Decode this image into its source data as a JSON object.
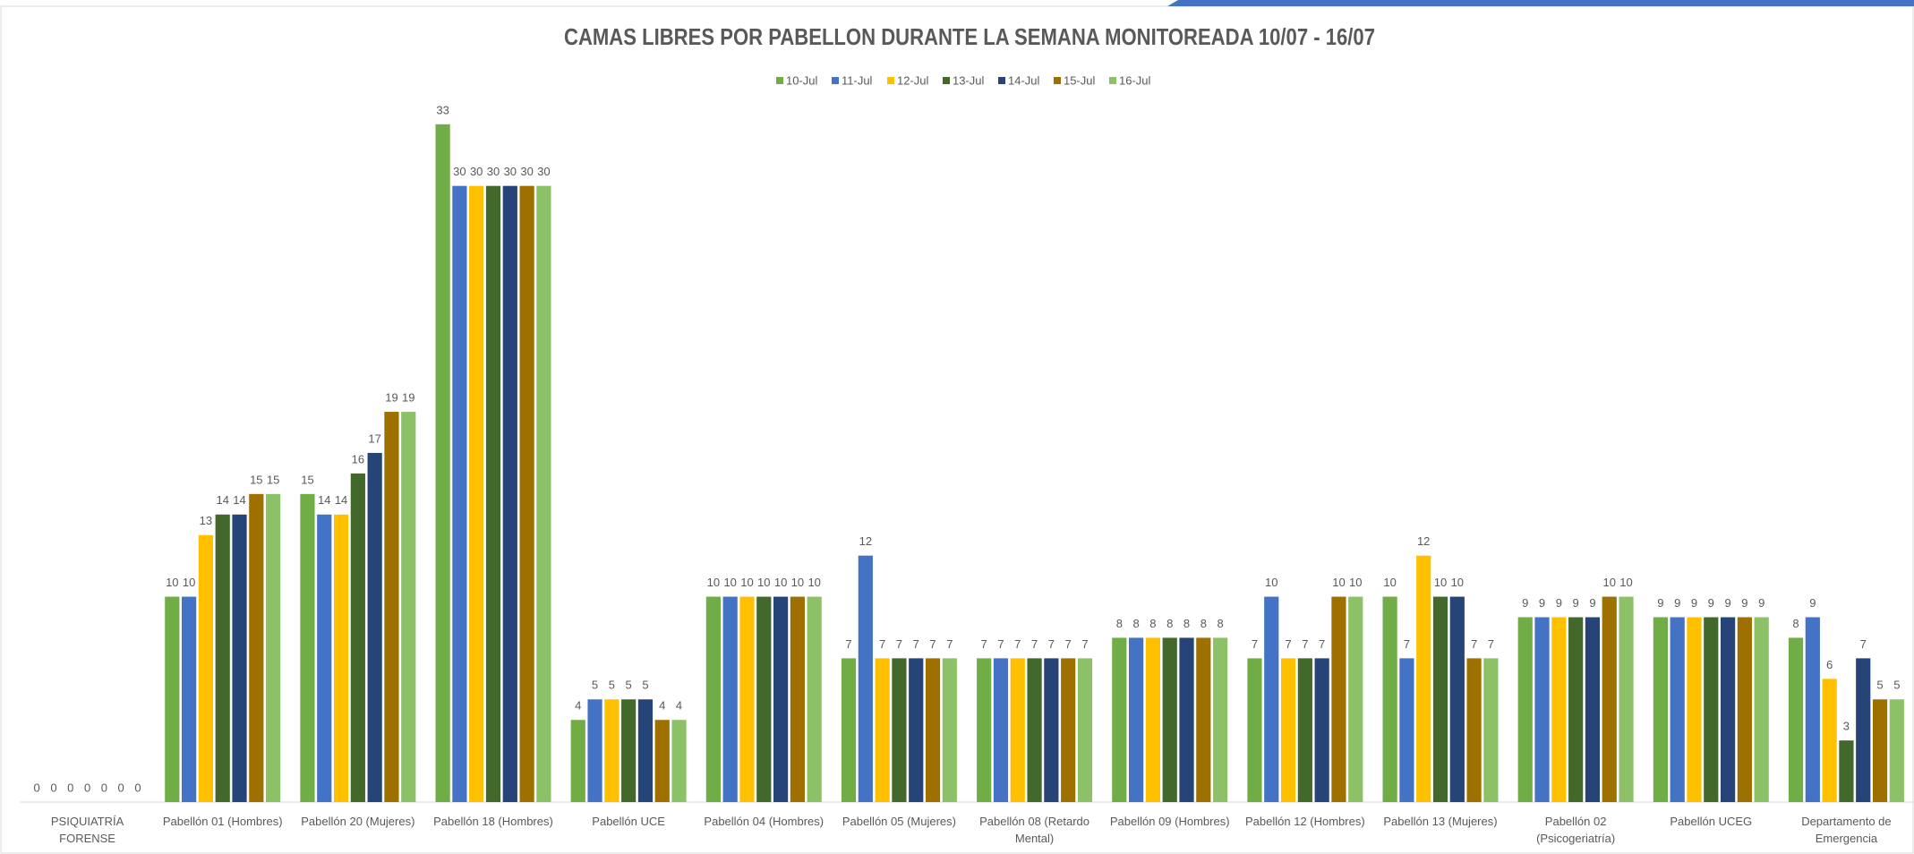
{
  "chart_data": {
    "type": "bar",
    "title": "CAMAS LIBRES POR PABELLON DURANTE LA SEMANA MONITOREADA 10/07 - 16/07",
    "categories": [
      "PSIQUIATRÍA FORENSE",
      "Pabellón 01 (Hombres)",
      "Pabellón 20 (Mujeres)",
      "Pabellón 18 (Hombres)",
      "Pabellón UCE",
      "Pabellón 04 (Hombres)",
      "Pabellón 05 (Mujeres)",
      "Pabellón 08 (Retardo Mental)",
      "Pabellón 09 (Hombres)",
      "Pabellón 12 (Hombres)",
      "Pabellón 13 (Mujeres)",
      "Pabellón 02 (Psicogeriatría)",
      "Pabellón UCEG",
      "Departamento de Emergencia"
    ],
    "series": [
      {
        "name": "10-Jul",
        "color": "#70ad47",
        "values": [
          0,
          10,
          15,
          33,
          4,
          10,
          7,
          7,
          8,
          7,
          10,
          9,
          9,
          8
        ]
      },
      {
        "name": "11-Jul",
        "color": "#4472c4",
        "values": [
          0,
          10,
          14,
          30,
          5,
          10,
          12,
          7,
          8,
          10,
          7,
          9,
          9,
          9
        ]
      },
      {
        "name": "12-Jul",
        "color": "#ffc000",
        "values": [
          0,
          13,
          14,
          30,
          5,
          10,
          7,
          7,
          8,
          7,
          12,
          9,
          9,
          6
        ]
      },
      {
        "name": "13-Jul",
        "color": "#43682b",
        "values": [
          0,
          14,
          16,
          30,
          5,
          10,
          7,
          7,
          8,
          7,
          10,
          9,
          9,
          3
        ]
      },
      {
        "name": "14-Jul",
        "color": "#264478",
        "values": [
          0,
          14,
          17,
          30,
          5,
          10,
          7,
          7,
          8,
          7,
          10,
          9,
          9,
          7
        ]
      },
      {
        "name": "15-Jul",
        "color": "#9e7000",
        "values": [
          0,
          15,
          19,
          30,
          4,
          10,
          7,
          7,
          8,
          10,
          7,
          10,
          9,
          5
        ]
      },
      {
        "name": "16-Jul",
        "color": "#8cc168",
        "values": [
          0,
          15,
          19,
          30,
          4,
          10,
          7,
          7,
          8,
          10,
          7,
          10,
          9,
          5
        ]
      }
    ],
    "ylim": [
      0,
      36
    ],
    "legend": "top"
  }
}
